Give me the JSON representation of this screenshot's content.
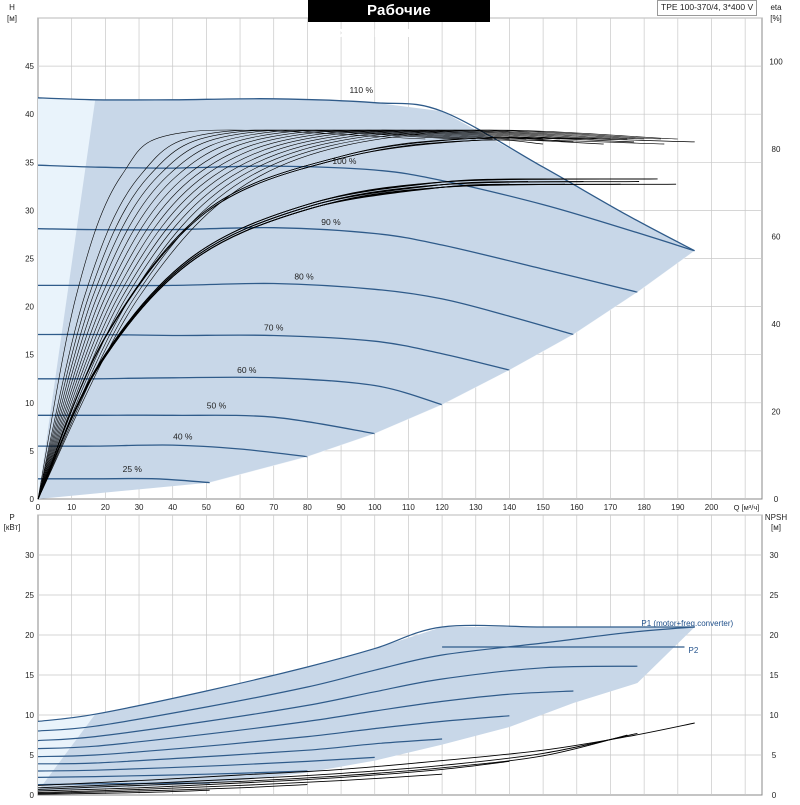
{
  "header": {
    "title": "Рабочие характеристики",
    "model": "TPE 100-370/4, 3*400 V"
  },
  "colors": {
    "envelope": "#c8d7e8",
    "envelope_low": "#e9f3fb",
    "curve_blue": "#2f5b8a",
    "curve_black": "#000000",
    "grid": "#c8c8c8",
    "label_blue": "#1f4f8a"
  },
  "chart_data": [
    {
      "type": "line",
      "title": "Рабочие характеристики",
      "xlabel": "Q [м³/ч]",
      "ylabel": "H [м]",
      "ylabel_right": "eta [%]",
      "xlim": [
        0,
        215
      ],
      "ylim": [
        0,
        50
      ],
      "y2lim": [
        0,
        110
      ],
      "x_ticks": [
        0,
        10,
        20,
        30,
        40,
        50,
        60,
        70,
        80,
        90,
        100,
        110,
        120,
        130,
        140,
        150,
        160,
        170,
        180,
        190,
        200
      ],
      "y_ticks": [
        0,
        5,
        10,
        15,
        20,
        25,
        30,
        35,
        40,
        45
      ],
      "y2_ticks": [
        0,
        20,
        40,
        60,
        80,
        100
      ],
      "grid": true,
      "speed_curves": [
        {
          "name": "110 %",
          "label_at": [
            96,
            42.0
          ],
          "x": [
            0,
            17,
            40,
            70,
            100,
            120,
            150,
            175,
            195
          ],
          "y": [
            41.7,
            41.5,
            41.5,
            41.6,
            41.2,
            40.3,
            34.5,
            29.5,
            25.8
          ]
        },
        {
          "name": "100 %",
          "label_at": [
            91,
            34.6
          ],
          "x": [
            0,
            17,
            40,
            70,
            100,
            120,
            150,
            175,
            195
          ],
          "y": [
            34.7,
            34.5,
            34.4,
            34.6,
            34.2,
            33.1,
            30.6,
            28.0,
            25.8
          ]
        },
        {
          "name": "90 %",
          "label_at": [
            87,
            28.3
          ],
          "x": [
            0,
            17,
            40,
            70,
            100,
            120,
            150,
            178
          ],
          "y": [
            28.1,
            28.0,
            28.0,
            28.2,
            27.6,
            26.4,
            23.9,
            21.5
          ]
        },
        {
          "name": "80 %",
          "label_at": [
            79,
            22.6
          ],
          "x": [
            0,
            17,
            40,
            70,
            100,
            120,
            140,
            159
          ],
          "y": [
            22.2,
            22.2,
            22.2,
            22.4,
            21.8,
            20.8,
            19.0,
            17.1
          ]
        },
        {
          "name": "70 %",
          "label_at": [
            70,
            17.3
          ],
          "x": [
            0,
            17,
            40,
            70,
            100,
            120,
            140
          ],
          "y": [
            17.1,
            17.1,
            17.0,
            17.0,
            16.4,
            15.1,
            13.4
          ]
        },
        {
          "name": "60 %",
          "label_at": [
            62,
            12.9
          ],
          "x": [
            0,
            17,
            40,
            70,
            100,
            120
          ],
          "y": [
            12.5,
            12.5,
            12.6,
            12.6,
            11.8,
            9.8
          ]
        },
        {
          "name": "50 %",
          "label_at": [
            53,
            9.2
          ],
          "x": [
            0,
            17,
            40,
            70,
            100
          ],
          "y": [
            8.7,
            8.7,
            8.7,
            8.5,
            6.8
          ]
        },
        {
          "name": "40 %",
          "label_at": [
            43,
            6.0
          ],
          "x": [
            0,
            17,
            40,
            60,
            80
          ],
          "y": [
            5.5,
            5.5,
            5.6,
            5.2,
            4.4
          ]
        },
        {
          "name": "25 %",
          "label_at": [
            28,
            2.6
          ],
          "x": [
            0,
            17,
            35,
            51
          ],
          "y": [
            2.1,
            2.1,
            2.1,
            1.7
          ]
        }
      ],
      "envelope": {
        "x": [
          0,
          17,
          40,
          70,
          100,
          120,
          150,
          175,
          195,
          178,
          159,
          140,
          120,
          100,
          80,
          51,
          0
        ],
        "y": [
          41.7,
          41.5,
          41.5,
          41.6,
          41.2,
          40.3,
          34.5,
          29.5,
          25.8,
          21.5,
          17.1,
          13.4,
          9.8,
          6.8,
          4.4,
          1.7,
          0
        ]
      },
      "low_flow_zone": {
        "x": [
          0,
          17,
          0
        ],
        "y": [
          41.7,
          41.5,
          0
        ]
      },
      "eta_curves": {
        "max_eta_small_q": [
          45,
          55,
          60,
          65,
          70,
          75,
          80,
          85,
          90,
          95,
          100,
          105,
          110,
          115,
          120
        ],
        "max_eta_values": [
          84,
          84,
          84,
          84,
          84,
          84,
          84,
          84,
          84,
          84,
          84,
          84,
          84,
          84,
          84
        ],
        "upper_end_x": 195,
        "upper_end_eta": 81,
        "lower_end_x": 195,
        "lower_end_eta": 72
      }
    },
    {
      "type": "line",
      "xlabel": "Q [м³/ч]",
      "ylabel": "P [кВт]",
      "ylabel_right": "NPSH [м]",
      "xlim": [
        0,
        215
      ],
      "ylim": [
        0,
        35
      ],
      "y_ticks": [
        0,
        5,
        10,
        15,
        20,
        25,
        30
      ],
      "grid": true,
      "legend_labels": [
        {
          "text": "P1 (motor+freq.converter)",
          "at": [
            178,
            21.0
          ]
        },
        {
          "text": "P2",
          "at": [
            192,
            17.6
          ]
        }
      ],
      "p1_curves": [
        {
          "x": [
            0,
            17,
            50,
            80,
            100,
            120,
            150,
            175,
            195
          ],
          "y": [
            9.2,
            10.1,
            13.0,
            16.0,
            18.3,
            21.0,
            21.0,
            21.0,
            21.0
          ]
        },
        {
          "x": [
            0,
            17,
            50,
            80,
            100,
            120,
            150,
            175,
            195
          ],
          "y": [
            8.0,
            8.6,
            11.0,
            13.5,
            15.6,
            17.5,
            19.0,
            20.3,
            21.0
          ]
        },
        {
          "x": [
            0,
            17,
            50,
            80,
            100,
            120,
            150,
            178
          ],
          "y": [
            6.8,
            7.3,
            9.2,
            11.2,
            12.9,
            14.5,
            15.9,
            16.1
          ]
        },
        {
          "x": [
            0,
            17,
            50,
            80,
            100,
            120,
            140,
            159
          ],
          "y": [
            5.8,
            6.1,
            7.6,
            9.2,
            10.5,
            11.7,
            12.6,
            13.0
          ]
        },
        {
          "x": [
            0,
            17,
            50,
            80,
            100,
            120,
            140
          ],
          "y": [
            4.8,
            5.0,
            6.1,
            7.3,
            8.3,
            9.2,
            9.9
          ]
        },
        {
          "x": [
            0,
            17,
            50,
            80,
            100,
            120
          ],
          "y": [
            3.9,
            4.0,
            4.8,
            5.6,
            6.4,
            7.0
          ]
        },
        {
          "x": [
            0,
            17,
            50,
            80,
            100
          ],
          "y": [
            3.0,
            3.1,
            3.6,
            4.2,
            4.7
          ]
        },
        {
          "x": [
            0,
            17,
            50,
            80
          ],
          "y": [
            2.2,
            2.3,
            2.6,
            3.0
          ]
        },
        {
          "x": [
            0,
            17,
            51
          ],
          "y": [
            1.3,
            1.4,
            1.5
          ]
        }
      ],
      "p_envelope": {
        "x": [
          0,
          17,
          50,
          80,
          100,
          120,
          150,
          175,
          195,
          178,
          159,
          140,
          120,
          100,
          80,
          51,
          0
        ],
        "y": [
          9.2,
          10.1,
          13.0,
          16.0,
          18.3,
          21.0,
          21.0,
          21.0,
          21.0,
          14.0,
          11.5,
          8.5,
          6.3,
          4.3,
          2.8,
          1.4,
          0.5
        ]
      },
      "p2_line": {
        "x": [
          120,
          192
        ],
        "y": [
          18.5,
          18.5
        ]
      },
      "npsh_curves": [
        {
          "x": [
            0,
            30,
            60,
            90,
            120,
            150,
            175,
            195
          ],
          "y": [
            1.2,
            1.8,
            2.5,
            3.2,
            4.3,
            5.6,
            7.3,
            9.0
          ]
        },
        {
          "x": [
            0,
            30,
            60,
            90,
            120,
            150,
            178
          ],
          "y": [
            0.9,
            1.4,
            2.0,
            2.7,
            3.7,
            5.2,
            7.7
          ]
        },
        {
          "x": [
            0,
            30,
            60,
            90,
            120,
            150,
            175
          ],
          "y": [
            0.7,
            1.2,
            1.7,
            2.4,
            3.4,
            4.9,
            7.5
          ]
        },
        {
          "x": [
            0,
            30,
            60,
            90,
            120,
            140
          ],
          "y": [
            0.5,
            0.9,
            1.5,
            2.2,
            3.2,
            4.2
          ]
        },
        {
          "x": [
            0,
            30,
            60,
            90,
            120
          ],
          "y": [
            0.3,
            0.7,
            1.2,
            1.8,
            2.6
          ]
        },
        {
          "x": [
            0,
            30,
            60,
            80
          ],
          "y": [
            0.2,
            0.5,
            0.9,
            1.3
          ]
        },
        {
          "x": [
            0,
            30,
            51
          ],
          "y": [
            0.1,
            0.3,
            0.6
          ]
        }
      ]
    }
  ]
}
